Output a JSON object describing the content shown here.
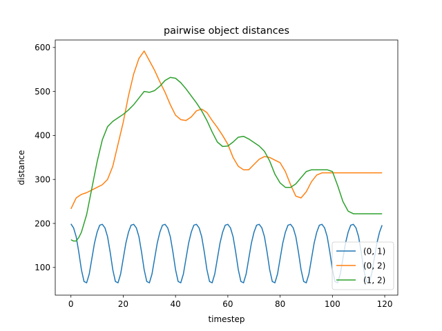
{
  "chart_data": {
    "type": "line",
    "title": "pairwise object distances",
    "xlabel": "timestep",
    "ylabel": "distance",
    "xlim": [
      -6,
      125
    ],
    "ylim": [
      37,
      617
    ],
    "xticks": [
      0,
      20,
      40,
      60,
      80,
      100,
      120
    ],
    "yticks": [
      100,
      200,
      300,
      400,
      500,
      600
    ],
    "grid": false,
    "legend_position": "lower-right",
    "series": [
      {
        "name": "(0, 1)",
        "color": "#1f77b4",
        "x": [
          0,
          1,
          2,
          3,
          4,
          5,
          6,
          7,
          8,
          9,
          10,
          11,
          12,
          13,
          14,
          15,
          16,
          17,
          18,
          19,
          20,
          21,
          22,
          23,
          24,
          25,
          26,
          27,
          28,
          29,
          30,
          31,
          32,
          33,
          34,
          35,
          36,
          37,
          38,
          39,
          40,
          41,
          42,
          43,
          44,
          45,
          46,
          47,
          48,
          49,
          50,
          51,
          52,
          53,
          54,
          55,
          56,
          57,
          58,
          59,
          60,
          61,
          62,
          63,
          64,
          65,
          66,
          67,
          68,
          69,
          70,
          71,
          72,
          73,
          74,
          75,
          76,
          77,
          78,
          79,
          80,
          81,
          82,
          83,
          84,
          85,
          86,
          87,
          88,
          89,
          90,
          91,
          92,
          93,
          94,
          95,
          96,
          97,
          98,
          99,
          100,
          101,
          102,
          103,
          104,
          105,
          106,
          107,
          108,
          109,
          110,
          111,
          112,
          113,
          114,
          115,
          116,
          117,
          118,
          119
        ],
        "values": [
          199,
          190,
          170,
          135,
          95,
          68,
          65,
          85,
          120,
          155,
          180,
          196,
          198,
          190,
          170,
          135,
          95,
          68,
          65,
          85,
          120,
          155,
          180,
          196,
          198,
          190,
          170,
          135,
          95,
          68,
          65,
          85,
          120,
          155,
          180,
          196,
          198,
          190,
          170,
          135,
          95,
          68,
          65,
          85,
          120,
          155,
          180,
          196,
          198,
          190,
          170,
          135,
          95,
          68,
          65,
          85,
          120,
          155,
          180,
          196,
          198,
          190,
          170,
          135,
          95,
          68,
          65,
          85,
          120,
          155,
          180,
          196,
          198,
          190,
          170,
          135,
          95,
          68,
          65,
          85,
          120,
          155,
          180,
          196,
          198,
          190,
          170,
          135,
          95,
          68,
          65,
          85,
          120,
          155,
          180,
          196,
          198,
          190,
          170,
          135,
          95,
          68,
          65,
          85,
          120,
          155,
          180,
          196,
          198,
          190,
          170,
          135,
          95,
          68,
          65,
          85,
          120,
          155,
          180,
          196
        ]
      },
      {
        "name": "(0, 2)",
        "color": "#ff7f0e",
        "x": [
          0,
          2,
          4,
          6,
          8,
          10,
          12,
          14,
          16,
          18,
          20,
          22,
          24,
          26,
          28,
          30,
          32,
          34,
          36,
          38,
          40,
          42,
          44,
          46,
          48,
          50,
          52,
          54,
          56,
          58,
          60,
          62,
          64,
          66,
          68,
          70,
          72,
          74,
          76,
          78,
          80,
          82,
          84,
          86,
          88,
          90,
          92,
          94,
          96,
          98,
          100,
          102,
          104,
          106,
          108,
          110,
          112,
          114,
          116,
          118,
          119
        ],
        "values": [
          233,
          258,
          266,
          270,
          276,
          282,
          288,
          300,
          330,
          380,
          430,
          490,
          540,
          575,
          592,
          570,
          548,
          522,
          498,
          470,
          446,
          436,
          434,
          442,
          456,
          460,
          452,
          434,
          418,
          400,
          380,
          350,
          330,
          322,
          322,
          334,
          346,
          352,
          350,
          344,
          338,
          318,
          288,
          262,
          258,
          272,
          295,
          310,
          315,
          315,
          315,
          315,
          315,
          315,
          315,
          315,
          315,
          315,
          315,
          315,
          315
        ]
      },
      {
        "name": "(1, 2)",
        "color": "#2ca02c",
        "x": [
          0,
          1,
          2,
          3,
          4,
          6,
          8,
          10,
          12,
          14,
          16,
          18,
          20,
          22,
          24,
          26,
          28,
          30,
          32,
          34,
          36,
          38,
          40,
          42,
          44,
          46,
          48,
          50,
          52,
          54,
          56,
          58,
          60,
          62,
          64,
          66,
          68,
          70,
          72,
          74,
          76,
          78,
          80,
          82,
          84,
          86,
          88,
          90,
          92,
          94,
          96,
          98,
          100,
          102,
          104,
          106,
          108,
          110,
          112,
          114,
          116,
          118,
          119
        ],
        "values": [
          163,
          160,
          160,
          168,
          180,
          220,
          280,
          340,
          390,
          420,
          432,
          440,
          448,
          458,
          470,
          485,
          500,
          498,
          502,
          512,
          525,
          532,
          530,
          520,
          506,
          490,
          474,
          456,
          434,
          408,
          385,
          375,
          376,
          385,
          396,
          398,
          392,
          384,
          376,
          364,
          342,
          312,
          292,
          282,
          282,
          290,
          304,
          318,
          322,
          322,
          322,
          322,
          318,
          286,
          250,
          228,
          222,
          222,
          222,
          222,
          222,
          222,
          222
        ]
      }
    ]
  }
}
